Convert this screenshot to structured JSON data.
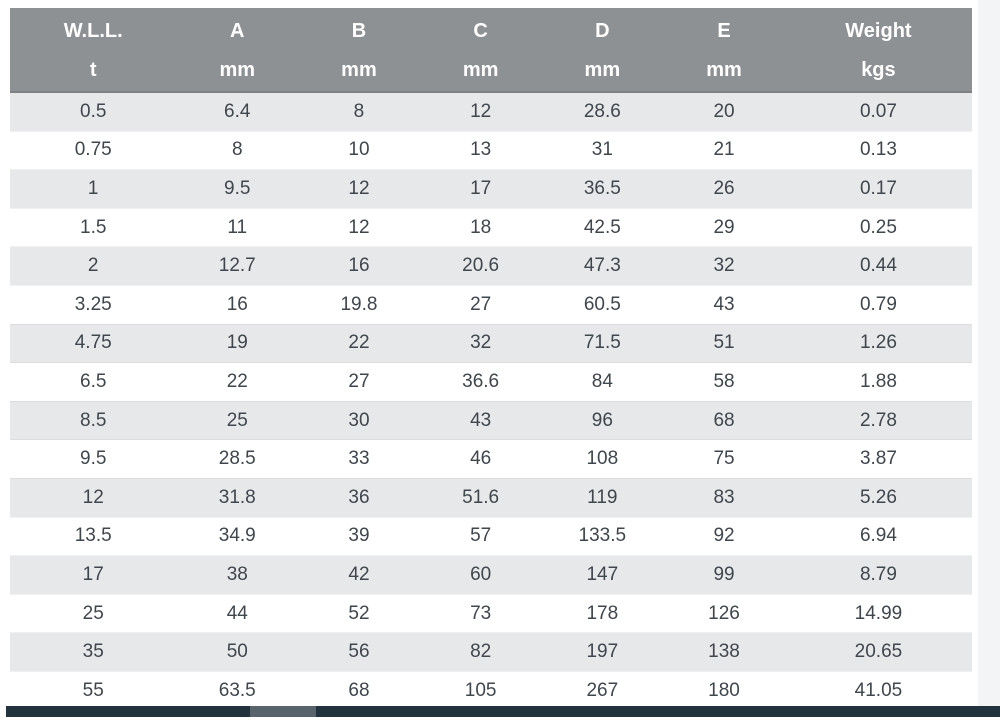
{
  "table": {
    "columns": [
      {
        "label": "W.L.L.",
        "unit": "t"
      },
      {
        "label": "A",
        "unit": "mm"
      },
      {
        "label": "B",
        "unit": "mm"
      },
      {
        "label": "C",
        "unit": "mm"
      },
      {
        "label": "D",
        "unit": "mm"
      },
      {
        "label": "E",
        "unit": "mm"
      },
      {
        "label": "Weight",
        "unit": "kgs"
      }
    ],
    "rows": [
      [
        "0.5",
        "6.4",
        "8",
        "12",
        "28.6",
        "20",
        "0.07"
      ],
      [
        "0.75",
        "8",
        "10",
        "13",
        "31",
        "21",
        "0.13"
      ],
      [
        "1",
        "9.5",
        "12",
        "17",
        "36.5",
        "26",
        "0.17"
      ],
      [
        "1.5",
        "11",
        "12",
        "18",
        "42.5",
        "29",
        "0.25"
      ],
      [
        "2",
        "12.7",
        "16",
        "20.6",
        "47.3",
        "32",
        "0.44"
      ],
      [
        "3.25",
        "16",
        "19.8",
        "27",
        "60.5",
        "43",
        "0.79"
      ],
      [
        "4.75",
        "19",
        "22",
        "32",
        "71.5",
        "51",
        "1.26"
      ],
      [
        "6.5",
        "22",
        "27",
        "36.6",
        "84",
        "58",
        "1.88"
      ],
      [
        "8.5",
        "25",
        "30",
        "43",
        "96",
        "68",
        "2.78"
      ],
      [
        "9.5",
        "28.5",
        "33",
        "46",
        "108",
        "75",
        "3.87"
      ],
      [
        "12",
        "31.8",
        "36",
        "51.6",
        "119",
        "83",
        "5.26"
      ],
      [
        "13.5",
        "34.9",
        "39",
        "57",
        "133.5",
        "92",
        "6.94"
      ],
      [
        "17",
        "38",
        "42",
        "60",
        "147",
        "99",
        "8.79"
      ],
      [
        "25",
        "44",
        "52",
        "73",
        "178",
        "126",
        "14.99"
      ],
      [
        "35",
        "50",
        "56",
        "82",
        "197",
        "138",
        "20.65"
      ],
      [
        "55",
        "63.5",
        "68",
        "105",
        "267",
        "180",
        "41.05"
      ]
    ]
  },
  "colors": {
    "header_bg": "#8e9193",
    "header_text": "#ffffff",
    "row_alt_bg": "#e7e8ea",
    "row_bg": "#ffffff",
    "cell_text": "#3f464c",
    "scrollbar_track": "#22333d",
    "scrollbar_thumb": "#57646b",
    "gutter_bg": "#f3f4f5"
  },
  "scrollbar": {
    "orientation": "horizontal"
  }
}
